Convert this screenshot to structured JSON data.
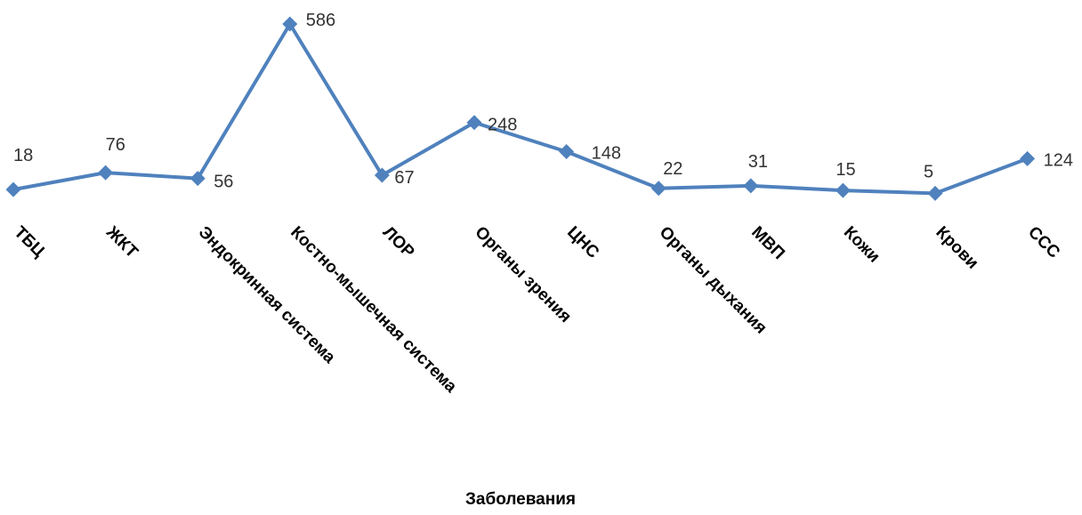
{
  "chart_data": {
    "type": "line",
    "title": "",
    "xlabel": "Заболевания",
    "ylabel": "",
    "categories": [
      "ТБЦ",
      "ЖКТ",
      "Эндокринная система",
      "Костно-мышечная система",
      "ЛОР",
      "Органы зрения",
      "ЦНС",
      "Органы дыхания",
      "МВП",
      "Кожи",
      "Крови",
      "ССС"
    ],
    "series": [
      {
        "values": [
          18,
          76,
          56,
          586,
          67,
          248,
          148,
          22,
          31,
          15,
          5,
          124
        ]
      }
    ],
    "data_labels": [
      "18",
      "76",
      "56",
      "586",
      "67",
      "248",
      "148",
      "22",
      "31",
      "15",
      "5",
      "124"
    ],
    "ylim": [
      0,
      586
    ],
    "grid": false,
    "legend": "none",
    "line_color": "#4F81BD",
    "marker": "diamond"
  }
}
